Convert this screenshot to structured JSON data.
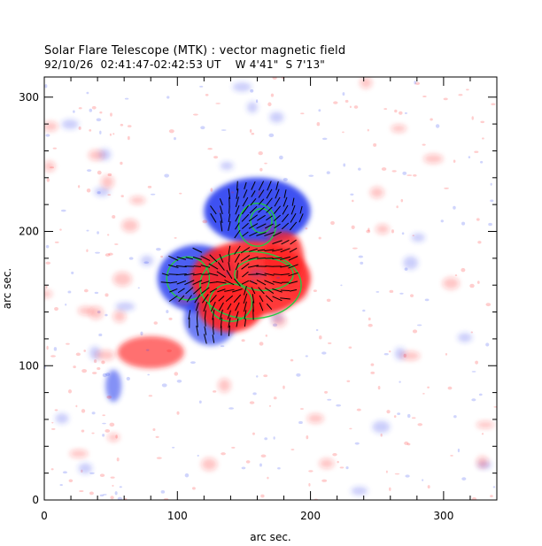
{
  "figure": {
    "title": "Solar Flare Telescope (MTK) : vector magnetic field",
    "subtitle": "92/10/26  02:41:47-02:42:53 UT    W 4'41\"  S 7'13\""
  },
  "chart_data": {
    "type": "heatmap",
    "xlabel": "arc sec.",
    "ylabel": "arc sec.",
    "xlim": [
      0,
      340
    ],
    "ylim": [
      0,
      315
    ],
    "xticks": [
      "0",
      "100",
      "200",
      "300"
    ],
    "yticks": [
      "0",
      "100",
      "200",
      "300"
    ],
    "xtick_values": [
      0,
      100,
      200,
      300
    ],
    "ytick_values": [
      0,
      100,
      200,
      300
    ],
    "colors": {
      "positive_polarity": "#ff2222",
      "negative_polarity": "#2a3ff0",
      "contour": "#22cc44",
      "vectors": "#000000"
    },
    "regions": [
      {
        "polarity": "negative",
        "center": [
          160,
          215
        ],
        "radius": [
          40,
          25
        ],
        "strength": 1.0
      },
      {
        "polarity": "negative",
        "center": [
          115,
          165
        ],
        "radius": [
          30,
          25
        ],
        "strength": 0.9
      },
      {
        "polarity": "negative",
        "center": [
          125,
          135
        ],
        "radius": [
          20,
          20
        ],
        "strength": 0.6
      },
      {
        "polarity": "positive",
        "center": [
          155,
          165
        ],
        "radius": [
          45,
          28
        ],
        "strength": 1.0
      },
      {
        "polarity": "positive",
        "center": [
          140,
          145
        ],
        "radius": [
          25,
          20
        ],
        "strength": 1.0
      },
      {
        "polarity": "positive",
        "center": [
          180,
          180
        ],
        "radius": [
          15,
          20
        ],
        "strength": 0.8
      },
      {
        "polarity": "positive",
        "center": [
          80,
          110
        ],
        "radius": [
          25,
          12
        ],
        "strength": 0.5
      },
      {
        "polarity": "negative",
        "center": [
          52,
          85
        ],
        "radius": [
          6,
          12
        ],
        "strength": 0.4
      }
    ],
    "contours": [
      {
        "polarity": "negative",
        "center": [
          160,
          205
        ],
        "rx": 14,
        "ry": 16
      },
      {
        "polarity": "negative",
        "center": [
          163,
          208
        ],
        "rx": 8,
        "ry": 9
      },
      {
        "polarity": "negative",
        "center": [
          108,
          165
        ],
        "rx": 16,
        "ry": 16
      },
      {
        "polarity": "positive",
        "center": [
          140,
          147
        ],
        "rx": 16,
        "ry": 14
      },
      {
        "polarity": "positive",
        "center": [
          165,
          168
        ],
        "rx": 22,
        "ry": 12
      },
      {
        "polarity": "positive",
        "center": [
          155,
          160
        ],
        "rx": 38,
        "ry": 25
      }
    ],
    "vector_field": {
      "x_range": [
        85,
        200
      ],
      "y_range": [
        120,
        240
      ],
      "spacing": 6
    }
  }
}
